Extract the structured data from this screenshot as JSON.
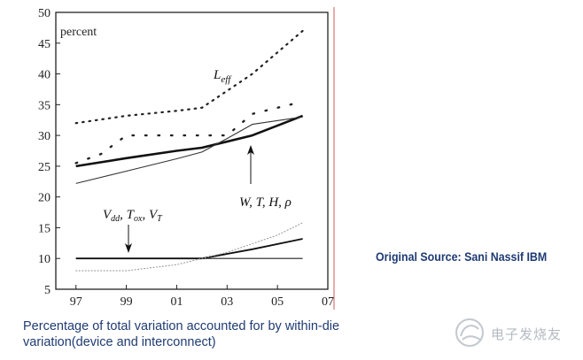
{
  "chart_data": {
    "type": "line",
    "x_ticks": [
      "97",
      "99",
      "01",
      "03",
      "05",
      "07"
    ],
    "y_ticks": [
      "5",
      "10",
      "15",
      "20",
      "25",
      "30",
      "35",
      "40",
      "45",
      "50"
    ],
    "ylim": [
      5,
      50
    ],
    "xlim": [
      1996.2,
      2007
    ],
    "grid": false,
    "unit_label": "percent",
    "annotations": {
      "leff": "L",
      "leff_sub": "eff",
      "wthp": "W, T, H, ρ",
      "vdd_main": "V",
      "vdd_sub": "dd",
      "tox_main": "T",
      "tox_sub": "ox",
      "vt_main": "V",
      "vt_sub": "T"
    },
    "series": [
      {
        "style": "dotted",
        "x": [
          1997,
          1999,
          2001,
          2002,
          2004,
          2006
        ],
        "y": [
          32,
          33.2,
          34,
          34.5,
          40,
          47
        ]
      },
      {
        "style": "dotted-sparse",
        "x": [
          1997,
          1998,
          1999,
          2000,
          2001,
          2002,
          2003,
          2004,
          2005,
          2006
        ],
        "y": [
          25.5,
          27,
          30,
          30,
          30,
          30,
          30,
          33.5,
          34.5,
          35.5
        ]
      },
      {
        "style": "thick",
        "x": [
          1997,
          1999,
          2001,
          2002,
          2004,
          2006
        ],
        "y": [
          25,
          26.3,
          27.5,
          28,
          30,
          33.2
        ]
      },
      {
        "style": "thin",
        "x": [
          1997,
          1999,
          2001,
          2002,
          2003,
          2004,
          2006
        ],
        "y": [
          22.2,
          24.2,
          26.2,
          27.3,
          29.5,
          31.8,
          33
        ]
      },
      {
        "style": "flat",
        "x": [
          1997,
          2006
        ],
        "y": [
          10,
          10
        ]
      },
      {
        "style": "thick-rising",
        "x": [
          1997,
          2002,
          2004,
          2006
        ],
        "y": [
          10,
          10,
          11.5,
          13.2
        ]
      },
      {
        "style": "faint-dotted",
        "x": [
          1997,
          1999,
          2001,
          2003,
          2005,
          2006
        ],
        "y": [
          8,
          8,
          9,
          11,
          13.8,
          15.8
        ]
      }
    ]
  },
  "caption": "Percentage of total variation accounted for by within-die variation(device and interconnect)",
  "source": "Original Source: Sani Nassif IBM",
  "watermark": "电子发烧友"
}
